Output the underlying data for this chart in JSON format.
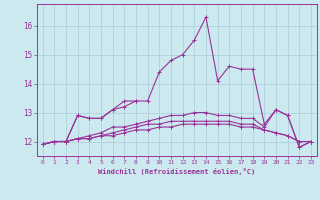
{
  "xlabel": "Windchill (Refroidissement éolien,°C)",
  "background_color": "#cce9f0",
  "grid_color": "#aaccd8",
  "line_color": "#993399",
  "x": [
    0,
    1,
    2,
    3,
    4,
    5,
    6,
    7,
    8,
    9,
    10,
    11,
    12,
    13,
    14,
    15,
    16,
    17,
    18,
    19,
    20,
    21,
    22,
    23
  ],
  "series": [
    [
      11.9,
      12.0,
      12.0,
      12.9,
      12.8,
      12.8,
      13.1,
      13.2,
      13.4,
      13.4,
      14.4,
      14.8,
      15.0,
      15.5,
      16.3,
      14.1,
      14.6,
      14.5,
      14.5,
      12.6,
      13.1,
      12.9,
      11.8,
      12.0
    ],
    [
      11.9,
      12.0,
      12.0,
      12.9,
      12.8,
      12.8,
      13.1,
      13.4,
      13.4,
      null,
      null,
      null,
      null,
      null,
      null,
      null,
      null,
      null,
      null,
      null,
      null,
      null,
      null,
      null
    ],
    [
      11.9,
      12.0,
      12.0,
      12.1,
      12.1,
      12.2,
      12.2,
      12.3,
      12.4,
      12.4,
      12.5,
      12.5,
      12.6,
      12.6,
      12.6,
      12.6,
      12.6,
      12.5,
      12.5,
      12.4,
      12.3,
      12.2,
      12.0,
      12.0
    ],
    [
      11.9,
      12.0,
      12.0,
      12.1,
      12.1,
      12.2,
      12.3,
      12.4,
      12.5,
      12.6,
      12.6,
      12.7,
      12.7,
      12.7,
      12.7,
      12.7,
      12.7,
      12.6,
      12.6,
      12.4,
      12.3,
      12.2,
      12.0,
      12.0
    ],
    [
      11.9,
      12.0,
      12.0,
      12.1,
      12.2,
      12.3,
      12.5,
      12.5,
      12.6,
      12.7,
      12.8,
      12.9,
      12.9,
      13.0,
      13.0,
      12.9,
      12.9,
      12.8,
      12.8,
      12.5,
      13.1,
      12.9,
      11.8,
      12.0
    ]
  ],
  "ylim": [
    11.5,
    16.75
  ],
  "yticks": [
    12,
    13,
    14,
    15,
    16
  ],
  "xticks": [
    0,
    1,
    2,
    3,
    4,
    5,
    6,
    7,
    8,
    9,
    10,
    11,
    12,
    13,
    14,
    15,
    16,
    17,
    18,
    19,
    20,
    21,
    22,
    23
  ],
  "marker": "+",
  "markersize": 3,
  "linewidth": 0.8
}
